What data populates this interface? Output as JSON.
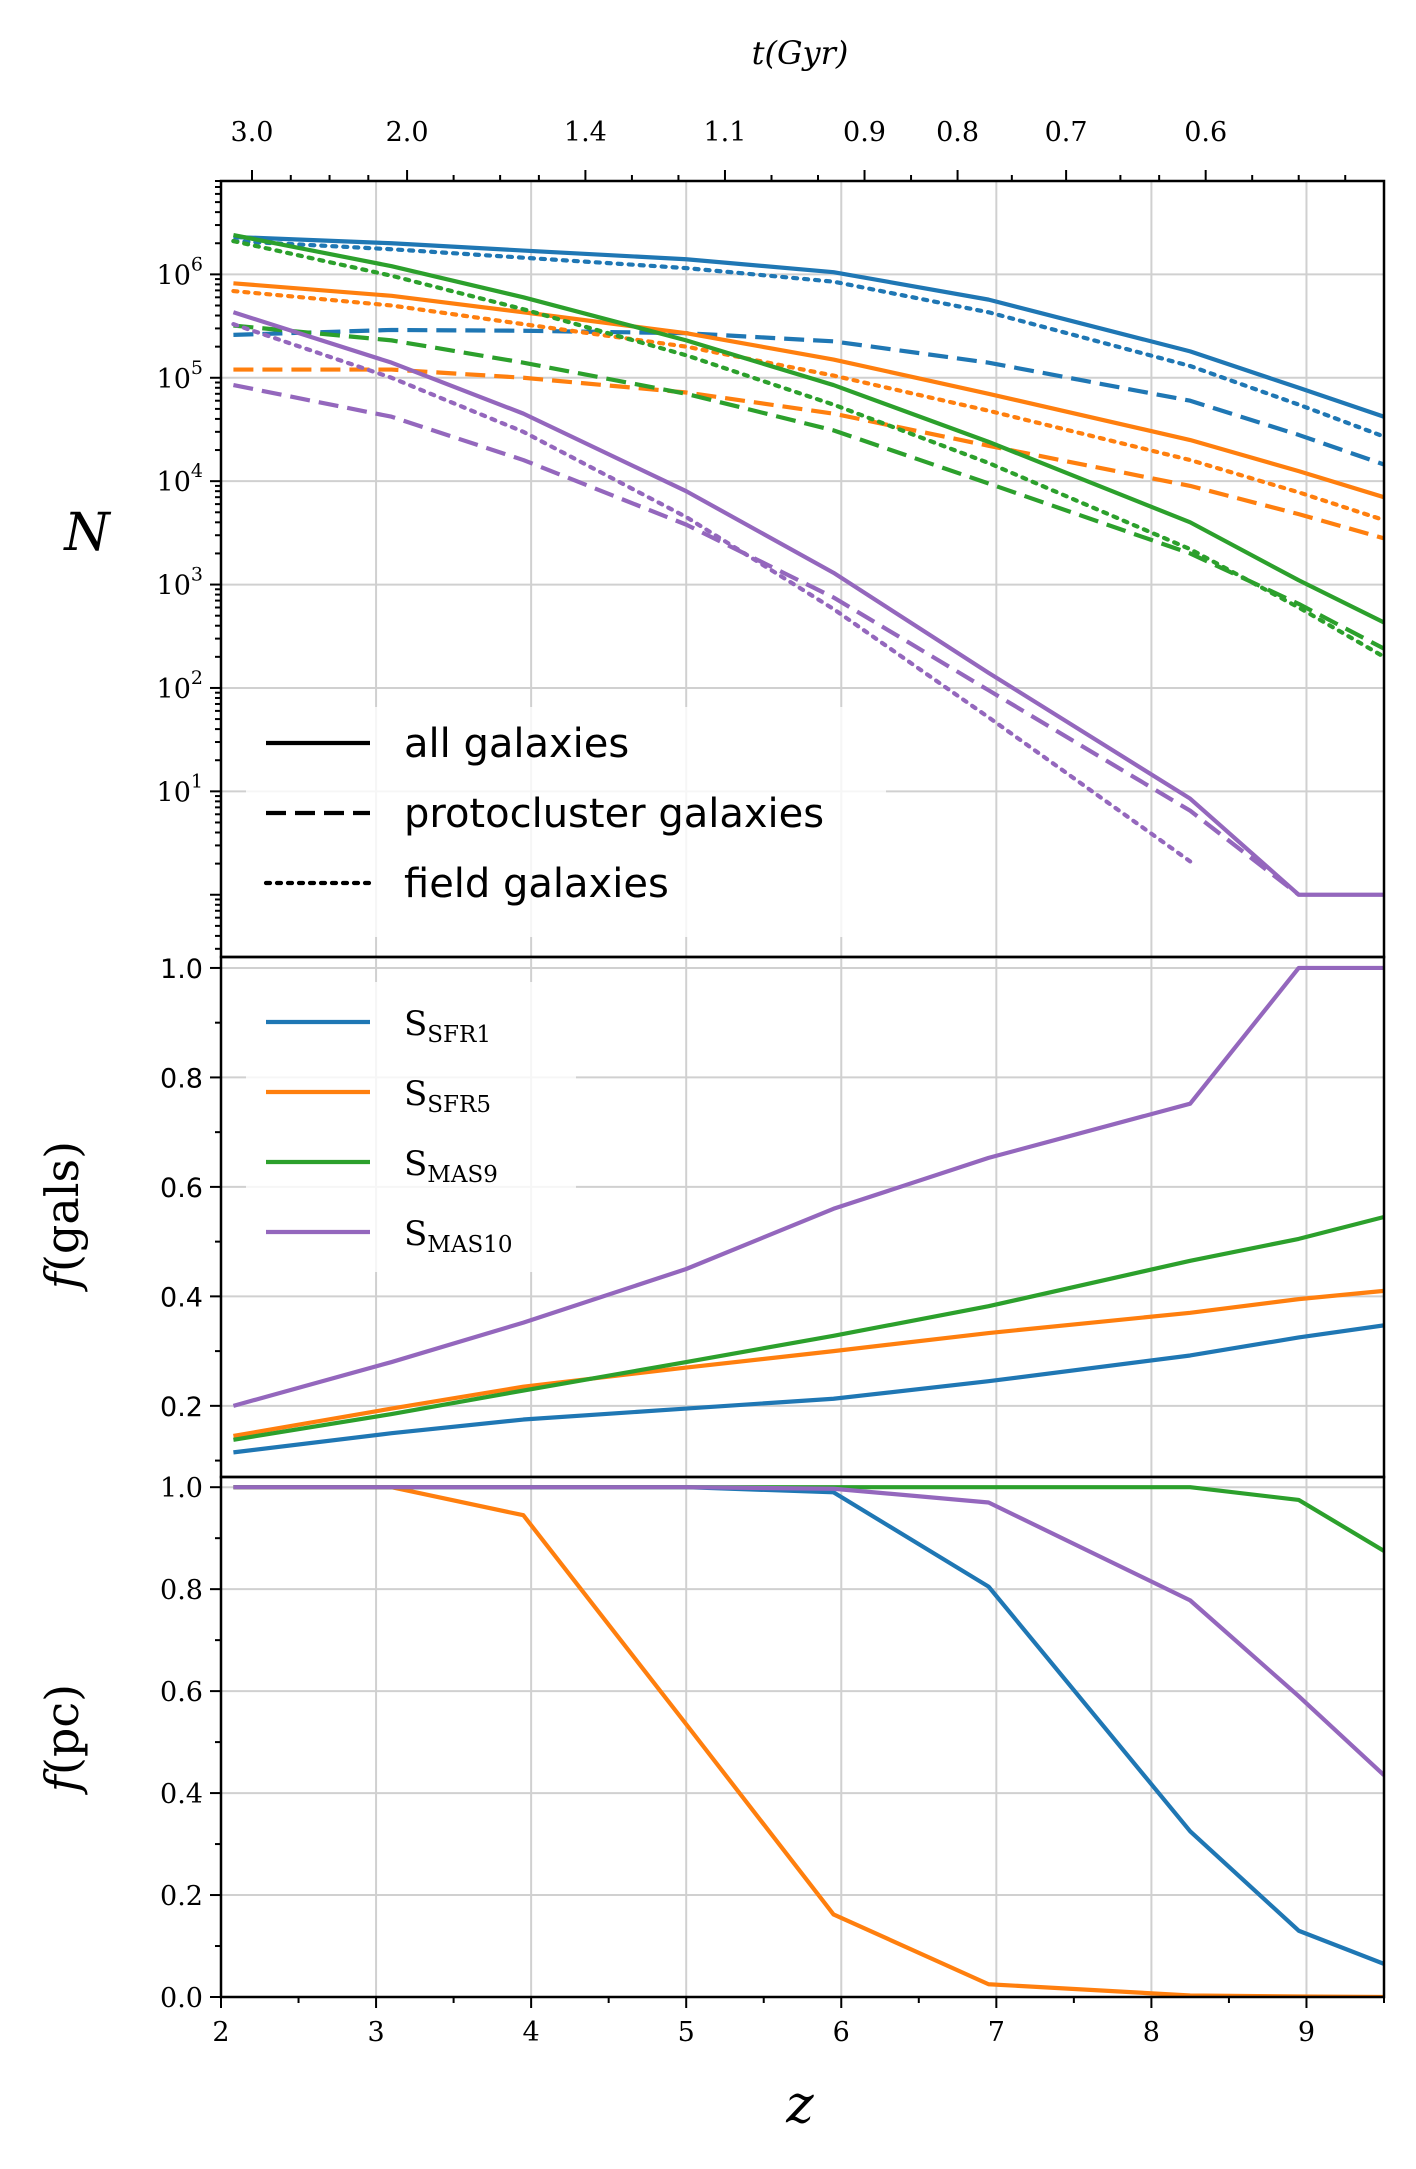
{
  "chart_data": [
    {
      "type": "line",
      "panel": "top",
      "ylabel": "N",
      "yscale": "log",
      "ylim": [
        0.25,
        8000000
      ],
      "xlim": [
        2,
        9.5
      ],
      "top_axis_title": "t(Gyr)",
      "top_ticks": [
        {
          "z": 2.2,
          "label": "3.0"
        },
        {
          "z": 3.2,
          "label": "2.0"
        },
        {
          "z": 4.35,
          "label": "1.4"
        },
        {
          "z": 5.25,
          "label": "1.1"
        },
        {
          "z": 6.15,
          "label": "0.9"
        },
        {
          "z": 6.75,
          "label": "0.8"
        },
        {
          "z": 7.45,
          "label": "0.7"
        },
        {
          "z": 8.35,
          "label": "0.6"
        }
      ],
      "y_tick_labels": [
        {
          "value": 10,
          "label": "10",
          "exp": "1"
        },
        {
          "value": 100,
          "label": "10",
          "exp": "2"
        },
        {
          "value": 1000,
          "label": "10",
          "exp": "3"
        },
        {
          "value": 10000,
          "label": "10",
          "exp": "4"
        },
        {
          "value": 100000,
          "label": "10",
          "exp": "5"
        },
        {
          "value": 1000000,
          "label": "10",
          "exp": "6"
        }
      ],
      "legend": [
        {
          "style": "solid",
          "label": "all galaxies"
        },
        {
          "style": "dashed",
          "label": "protocluster galaxies"
        },
        {
          "style": "dotted",
          "label": "field galaxies"
        }
      ],
      "series": [
        {
          "name": "SFR1 all",
          "color": "#1f77b4",
          "style": "solid",
          "x": [
            2.08,
            3.1,
            3.95,
            5.0,
            5.95,
            6.95,
            8.25,
            8.95,
            9.5
          ],
          "y": [
            2300000,
            2000000,
            1700000,
            1400000,
            1050000,
            570000,
            180000,
            80000,
            42000
          ]
        },
        {
          "name": "SFR1 pc",
          "color": "#1f77b4",
          "style": "dashed",
          "x": [
            2.08,
            3.1,
            3.95,
            5.0,
            5.95,
            6.95,
            8.25,
            8.95,
            9.5
          ],
          "y": [
            260000,
            290000,
            285000,
            270000,
            225000,
            140000,
            60000,
            28000,
            14500
          ]
        },
        {
          "name": "SFR1 field",
          "color": "#1f77b4",
          "style": "dotted",
          "x": [
            2.08,
            3.1,
            3.95,
            5.0,
            5.95,
            6.95,
            8.25,
            8.95,
            9.5
          ],
          "y": [
            2100000,
            1750000,
            1450000,
            1150000,
            850000,
            430000,
            130000,
            55000,
            27000
          ]
        },
        {
          "name": "SFR5 all",
          "color": "#ff7f0e",
          "style": "solid",
          "x": [
            2.08,
            3.1,
            3.95,
            5.0,
            5.95,
            6.95,
            8.25,
            8.95,
            9.5
          ],
          "y": [
            820000,
            620000,
            430000,
            270000,
            150000,
            70000,
            25000,
            12500,
            7000
          ]
        },
        {
          "name": "SFR5 pc",
          "color": "#ff7f0e",
          "style": "dashed",
          "x": [
            2.08,
            3.1,
            3.95,
            5.0,
            5.95,
            6.95,
            8.25,
            8.95,
            9.5
          ],
          "y": [
            120000,
            120000,
            100000,
            72000,
            45000,
            22000,
            9000,
            4800,
            2800
          ]
        },
        {
          "name": "SFR5 field",
          "color": "#ff7f0e",
          "style": "dotted",
          "x": [
            2.08,
            3.1,
            3.95,
            5.0,
            5.95,
            6.95,
            8.25,
            8.95,
            9.5
          ],
          "y": [
            690000,
            500000,
            330000,
            200000,
            105000,
            48000,
            16000,
            7800,
            4200
          ]
        },
        {
          "name": "MAS9 all",
          "color": "#2ca02c",
          "style": "solid",
          "x": [
            2.08,
            3.1,
            3.95,
            5.0,
            5.95,
            6.95,
            8.25,
            8.95,
            9.5
          ],
          "y": [
            2400000,
            1200000,
            600000,
            230000,
            85000,
            24000,
            4000,
            1100,
            430
          ]
        },
        {
          "name": "MAS9 pc",
          "color": "#2ca02c",
          "style": "dashed",
          "x": [
            2.08,
            3.1,
            3.95,
            5.0,
            5.95,
            6.95,
            8.25,
            8.95,
            9.5
          ],
          "y": [
            320000,
            230000,
            140000,
            70000,
            31000,
            9500,
            2000,
            650,
            240
          ]
        },
        {
          "name": "MAS9 field",
          "color": "#2ca02c",
          "style": "dotted",
          "x": [
            2.08,
            3.1,
            3.95,
            5.0,
            5.95,
            6.95,
            8.25,
            8.95,
            9.5
          ],
          "y": [
            2100000,
            970000,
            460000,
            165000,
            55000,
            15000,
            2200,
            600,
            200
          ]
        },
        {
          "name": "MAS10 all",
          "color": "#9467bd",
          "style": "solid",
          "x": [
            2.08,
            3.1,
            3.95,
            5.0,
            5.95,
            6.95,
            8.25,
            8.95,
            9.5
          ],
          "y": [
            430000,
            140000,
            45000,
            8000,
            1300,
            140,
            8.5,
            1.0,
            1.0
          ]
        },
        {
          "name": "MAS10 pc",
          "color": "#9467bd",
          "style": "dashed",
          "x": [
            2.08,
            3.1,
            3.95,
            5.0,
            5.95,
            6.95,
            8.25,
            8.95
          ],
          "y": [
            85000,
            42000,
            16000,
            3800,
            750,
            95,
            6.5,
            1.0
          ]
        },
        {
          "name": "MAS10 field",
          "color": "#9467bd",
          "style": "dotted",
          "x": [
            2.08,
            3.1,
            3.95,
            5.0,
            5.95,
            6.95,
            8.25
          ],
          "y": [
            330000,
            100000,
            30000,
            4500,
            580,
            52,
            2.1
          ]
        }
      ]
    },
    {
      "type": "line",
      "panel": "middle",
      "ylabel": "f(gals)",
      "ylim": [
        0.07,
        1.02
      ],
      "xlim": [
        2,
        9.5
      ],
      "y_ticks": [
        {
          "value": 0.2,
          "label": "0.2"
        },
        {
          "value": 0.4,
          "label": "0.4"
        },
        {
          "value": 0.6,
          "label": "0.6"
        },
        {
          "value": 0.8,
          "label": "0.8"
        },
        {
          "value": 1.0,
          "label": "1.0"
        }
      ],
      "legend": [
        {
          "label": "S",
          "sub": "SFR1",
          "color": "#1f77b4"
        },
        {
          "label": "S",
          "sub": "SFR5",
          "color": "#ff7f0e"
        },
        {
          "label": "S",
          "sub": "MAS9",
          "color": "#2ca02c"
        },
        {
          "label": "S",
          "sub": "MAS10",
          "color": "#9467bd"
        }
      ],
      "series": [
        {
          "name": "SFR1",
          "color": "#1f77b4",
          "x": [
            2.08,
            3.1,
            3.95,
            5.0,
            5.95,
            6.95,
            8.25,
            8.95,
            9.5
          ],
          "y": [
            0.115,
            0.15,
            0.175,
            0.195,
            0.213,
            0.245,
            0.292,
            0.325,
            0.347
          ]
        },
        {
          "name": "SFR5",
          "color": "#ff7f0e",
          "x": [
            2.08,
            3.1,
            3.95,
            5.0,
            5.95,
            6.95,
            8.25,
            8.95,
            9.5
          ],
          "y": [
            0.145,
            0.195,
            0.235,
            0.27,
            0.3,
            0.333,
            0.37,
            0.395,
            0.41
          ]
        },
        {
          "name": "MAS9",
          "color": "#2ca02c",
          "x": [
            2.08,
            3.1,
            3.95,
            5.0,
            5.95,
            6.95,
            8.25,
            8.95,
            9.5
          ],
          "y": [
            0.138,
            0.185,
            0.228,
            0.28,
            0.328,
            0.382,
            0.465,
            0.505,
            0.545
          ]
        },
        {
          "name": "MAS10",
          "color": "#9467bd",
          "x": [
            2.08,
            3.1,
            3.95,
            5.0,
            5.95,
            6.95,
            8.25,
            8.95,
            9.5
          ],
          "y": [
            0.2,
            0.28,
            0.352,
            0.45,
            0.56,
            0.653,
            0.752,
            1.0,
            1.0
          ]
        }
      ]
    },
    {
      "type": "line",
      "panel": "bottom",
      "ylabel": "f(pc)",
      "xlabel": "z",
      "ylim": [
        0.0,
        1.02
      ],
      "xlim": [
        2,
        9.5
      ],
      "x_ticks": [
        {
          "value": 2,
          "label": "2"
        },
        {
          "value": 3,
          "label": "3"
        },
        {
          "value": 4,
          "label": "4"
        },
        {
          "value": 5,
          "label": "5"
        },
        {
          "value": 6,
          "label": "6"
        },
        {
          "value": 7,
          "label": "7"
        },
        {
          "value": 8,
          "label": "8"
        },
        {
          "value": 9,
          "label": "9"
        }
      ],
      "y_ticks": [
        {
          "value": 0.0,
          "label": "0.0"
        },
        {
          "value": 0.2,
          "label": "0.2"
        },
        {
          "value": 0.4,
          "label": "0.4"
        },
        {
          "value": 0.6,
          "label": "0.6"
        },
        {
          "value": 0.8,
          "label": "0.8"
        },
        {
          "value": 1.0,
          "label": "1.0"
        }
      ],
      "series": [
        {
          "name": "SFR1",
          "color": "#1f77b4",
          "x": [
            2.08,
            3.1,
            3.95,
            5.0,
            5.95,
            6.95,
            8.25,
            8.95,
            9.5
          ],
          "y": [
            1.0,
            1.0,
            1.0,
            1.0,
            0.99,
            0.805,
            0.325,
            0.13,
            0.065
          ]
        },
        {
          "name": "SFR5",
          "color": "#ff7f0e",
          "x": [
            2.08,
            3.1,
            3.95,
            5.0,
            5.95,
            6.95,
            8.25,
            8.95,
            9.5
          ],
          "y": [
            1.0,
            1.0,
            0.945,
            0.535,
            0.162,
            0.025,
            0.003,
            0.001,
            0.0
          ]
        },
        {
          "name": "MAS9",
          "color": "#2ca02c",
          "x": [
            2.08,
            3.1,
            3.95,
            5.0,
            5.95,
            6.95,
            8.25,
            8.95,
            9.5
          ],
          "y": [
            1.0,
            1.0,
            1.0,
            1.0,
            1.0,
            1.0,
            1.0,
            0.975,
            0.875
          ]
        },
        {
          "name": "MAS10",
          "color": "#9467bd",
          "x": [
            2.08,
            3.1,
            3.95,
            5.0,
            5.95,
            6.95,
            8.25,
            8.95,
            9.5
          ],
          "y": [
            1.0,
            1.0,
            1.0,
            1.0,
            0.997,
            0.97,
            0.778,
            0.59,
            0.435
          ]
        }
      ]
    }
  ]
}
